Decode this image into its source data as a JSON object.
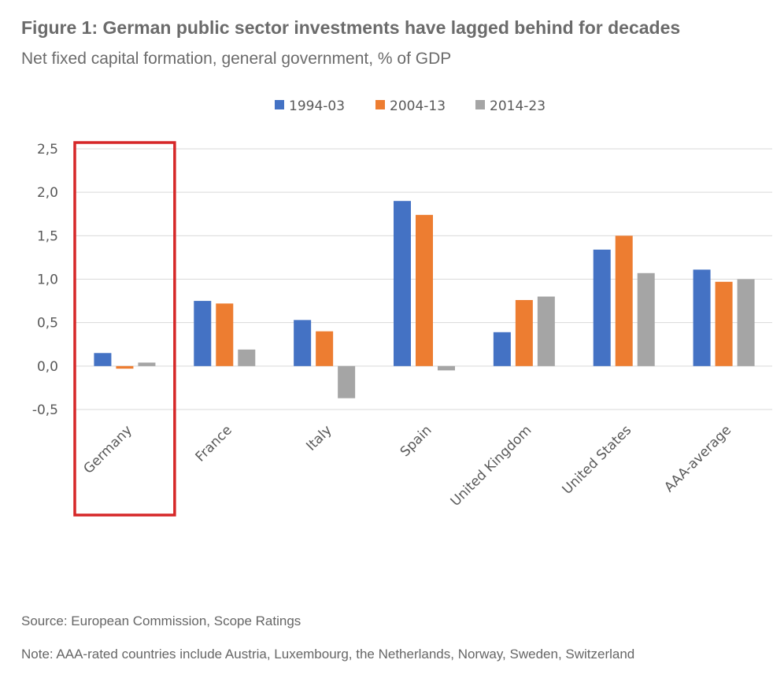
{
  "header": {
    "title": "Figure 1: German public sector investments have lagged behind for decades",
    "subtitle": "Net fixed capital formation, general government, % of GDP"
  },
  "chart_data": {
    "type": "bar",
    "title": "",
    "xlabel": "",
    "ylabel": "",
    "categories": [
      "Germany",
      "France",
      "Italy",
      "Spain",
      "United Kingdom",
      "United States",
      "AAA-average"
    ],
    "series": [
      {
        "name": "1994-03",
        "color": "#4472c4",
        "values": [
          0.15,
          0.75,
          0.53,
          1.9,
          0.39,
          1.34,
          1.11
        ]
      },
      {
        "name": "2004-13",
        "color": "#ed7d31",
        "values": [
          -0.03,
          0.72,
          0.4,
          1.74,
          0.76,
          1.5,
          0.97
        ]
      },
      {
        "name": "2014-23",
        "color": "#a5a5a5",
        "values": [
          0.04,
          0.19,
          -0.37,
          -0.05,
          0.8,
          1.07,
          1.0
        ]
      }
    ],
    "ylim": [
      -0.5,
      2.5
    ],
    "yticks": [
      "2,5",
      "2,0",
      "1,5",
      "1,0",
      "0,5",
      "0,0",
      "-0,5"
    ],
    "grid": true,
    "legend": "top-center",
    "highlight": {
      "category": "Germany",
      "color": "#d62728"
    }
  },
  "footer": {
    "source": "Source: European Commission, Scope Ratings",
    "note": "Note: AAA-rated countries include Austria, Luxembourg, the Netherlands, Norway, Sweden, Switzerland"
  }
}
